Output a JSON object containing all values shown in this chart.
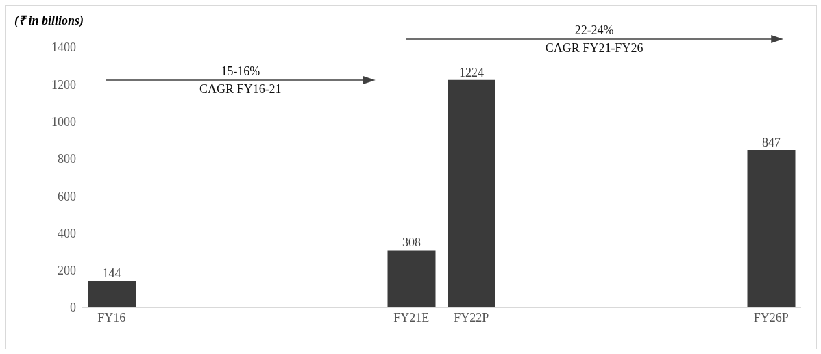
{
  "chart_data": {
    "type": "bar",
    "ylabel": "(₹ in billions)",
    "categories": [
      "FY16",
      null,
      null,
      null,
      null,
      "FY21E",
      "FY22P",
      null,
      null,
      null,
      null,
      "FY26P"
    ],
    "values": [
      144,
      null,
      null,
      null,
      null,
      308,
      1224,
      null,
      null,
      null,
      null,
      847
    ],
    "color": "#3a3a3a",
    "data_labels": true,
    "grid": false,
    "legend": false,
    "ylim": [
      0,
      1400
    ],
    "yticks": [
      0,
      200,
      400,
      600,
      800,
      1000,
      1200,
      1400
    ],
    "annotations": [
      "15-16%\nCAGR FY16-21",
      "22-24%\nCAGR FY21-FY26"
    ]
  }
}
